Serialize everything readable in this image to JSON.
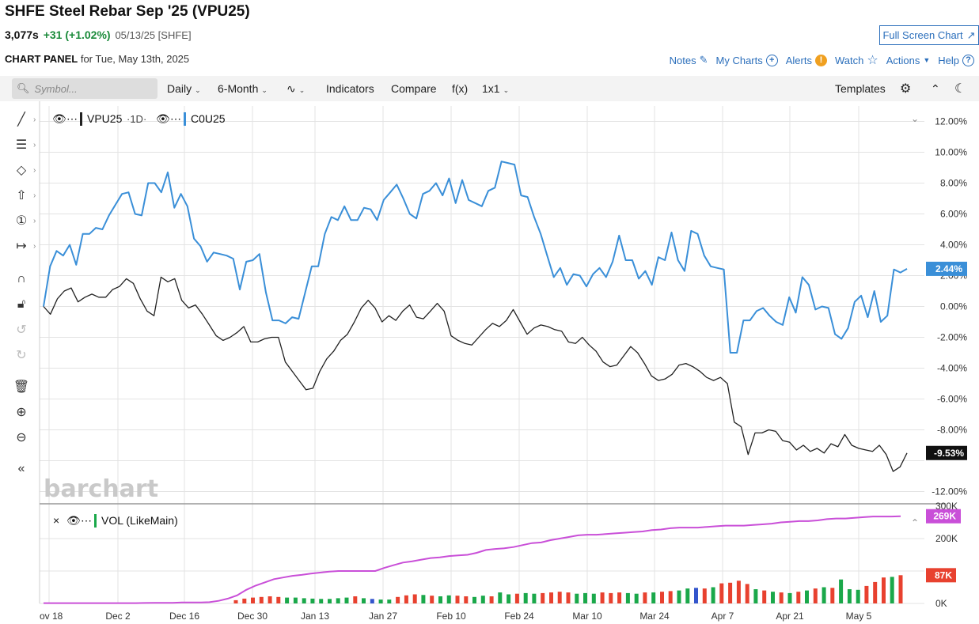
{
  "header": {
    "title": "SHFE Steel Rebar Sep '25 (VPU25)",
    "price": "3,077s",
    "change": "+31 (+1.02%)",
    "meta": "05/13/25 [SHFE]",
    "fullscreen_label": "Full Screen Chart"
  },
  "panel": {
    "label": "CHART PANEL",
    "date_text": "for Tue, May 13th, 2025",
    "links": {
      "notes": "Notes",
      "mycharts": "My Charts",
      "alerts": "Alerts",
      "watch": "Watch",
      "actions": "Actions",
      "help": "Help"
    }
  },
  "toolbar": {
    "search_placeholder": "Symbol...",
    "interval": "Daily",
    "range": "6-Month",
    "indicators": "Indicators",
    "compare": "Compare",
    "fx": "f(x)",
    "layout": "1x1",
    "templates": "Templates"
  },
  "watermark": "barchart",
  "icons": {
    "left_tools": [
      "line-tool-icon",
      "fib-tool-icon",
      "shapes-tool-icon",
      "arrow-tool-icon",
      "annotation-tool-icon",
      "measure-tool-icon",
      "magnet-icon",
      "unlock-icon",
      "undo-icon",
      "redo-icon",
      "trash-icon",
      "zoom-in-icon",
      "zoom-out-icon",
      "collapse-icon"
    ]
  },
  "colors": {
    "primary": "#222222",
    "compare": "#3a8fd8",
    "vol_line": "#c94fd8",
    "vol_up": "#1aa84a",
    "vol_down": "#e8412f",
    "vol_blue": "#3355cc",
    "link": "#2a6ebb"
  },
  "chart_data": [
    {
      "type": "line",
      "legend": [
        "VPU25",
        "1D",
        "C0U25"
      ],
      "ylabel": "",
      "yticks": [
        "12.00%",
        "10.00%",
        "8.00%",
        "6.00%",
        "4.00%",
        "2.00%",
        "0.00%",
        "-2.00%",
        "-4.00%",
        "-6.00%",
        "-8.00%",
        "-12.00%"
      ],
      "ylim": [
        -12.5,
        12.5
      ],
      "xticks": [
        "ov 18",
        "Dec 2",
        "Dec 16",
        "Dec 30",
        "Jan 13",
        "Jan 27",
        "Feb 10",
        "Feb 24",
        "Mar 10",
        "Mar 24",
        "Apr 7",
        "Apr 21",
        "May 5"
      ],
      "last_labels": {
        "VPU25": "-9.53%",
        "C0U25": "2.44%"
      },
      "series": [
        {
          "name": "VPU25",
          "values": [
            0.0,
            -0.5,
            0.5,
            1.0,
            1.2,
            0.3,
            0.6,
            0.8,
            0.6,
            0.6,
            1.1,
            1.3,
            1.8,
            1.5,
            0.5,
            -0.3,
            -0.6,
            1.9,
            1.6,
            1.8,
            0.4,
            -0.1,
            0.1,
            -0.5,
            -1.2,
            -1.9,
            -2.2,
            -2.0,
            -1.7,
            -1.3,
            -2.3,
            -2.3,
            -2.1,
            -2.0,
            -2.0,
            -3.6,
            -4.2,
            -4.8,
            -5.4,
            -5.3,
            -4.2,
            -3.4,
            -2.9,
            -2.2,
            -1.8,
            -1.0,
            -0.1,
            0.4,
            -0.1,
            -1.0,
            -0.6,
            -0.9,
            -0.3,
            0.1,
            -0.7,
            -0.8,
            -0.3,
            0.2,
            -0.3,
            -1.9,
            -2.2,
            -2.4,
            -2.5,
            -2.0,
            -1.5,
            -1.1,
            -1.3,
            -0.9,
            -0.2,
            -1.0,
            -1.8,
            -1.4,
            -1.2,
            -1.3,
            -1.5,
            -1.6,
            -2.3,
            -2.4,
            -2.0,
            -2.5,
            -2.9,
            -3.6,
            -3.9,
            -3.8,
            -3.2,
            -2.6,
            -3.0,
            -3.7,
            -4.5,
            -4.8,
            -4.7,
            -4.4,
            -3.8,
            -3.7,
            -3.9,
            -4.2,
            -4.6,
            -4.8,
            -4.6,
            -5.0,
            -7.5,
            -7.8,
            -9.6,
            -8.2,
            -8.2,
            -8.0,
            -8.1,
            -8.7,
            -8.8,
            -9.3,
            -9.0,
            -9.4,
            -9.2,
            -9.5,
            -8.9,
            -9.1,
            -8.3,
            -9.0,
            -9.2,
            -9.3,
            -9.4,
            -9.0,
            -9.6,
            -10.7,
            -10.4,
            -9.5
          ]
        },
        {
          "name": "C0U25",
          "values": [
            0.0,
            2.6,
            3.6,
            3.3,
            4.0,
            2.7,
            4.7,
            4.7,
            5.1,
            5.0,
            5.9,
            6.6,
            7.3,
            7.4,
            6.0,
            5.9,
            8.0,
            8.0,
            7.4,
            8.7,
            6.4,
            7.3,
            6.5,
            4.4,
            3.9,
            2.9,
            3.5,
            3.4,
            3.3,
            3.1,
            1.1,
            2.9,
            3.0,
            3.4,
            0.9,
            -0.9,
            -0.9,
            -1.1,
            -0.7,
            -0.8,
            0.9,
            2.6,
            2.6,
            4.7,
            5.8,
            5.6,
            6.5,
            5.6,
            5.6,
            6.4,
            6.3,
            5.6,
            6.9,
            7.4,
            7.9,
            7.0,
            6.0,
            5.7,
            7.3,
            7.5,
            8.0,
            7.2,
            8.3,
            6.7,
            8.2,
            6.9,
            6.7,
            6.5,
            7.5,
            7.7,
            9.4,
            9.3,
            9.2,
            7.2,
            7.1,
            5.8,
            4.7,
            3.3,
            1.9,
            2.5,
            1.4,
            2.1,
            2.0,
            1.3,
            2.1,
            2.5,
            1.9,
            2.9,
            4.6,
            3.0,
            3.0,
            1.8,
            2.3,
            1.4,
            3.2,
            3.0,
            4.8,
            3.0,
            2.3,
            4.9,
            4.7,
            3.3,
            2.6,
            2.5,
            2.4,
            -3.0,
            -3.0,
            -0.9,
            -0.9,
            -0.3,
            -0.1,
            -0.6,
            -1.0,
            -1.2,
            0.6,
            -0.4,
            1.9,
            1.4,
            -0.2,
            0.0,
            -0.1,
            -1.8,
            -2.1,
            -1.4,
            0.3,
            0.7,
            -0.7,
            1.0,
            -1.0,
            -0.6,
            2.4,
            2.2,
            2.44
          ]
        }
      ]
    },
    {
      "type": "bar",
      "legend": "VOL (LikeMain)",
      "yticks": [
        "300K",
        "200K",
        "100K",
        "0K"
      ],
      "ylim": [
        0,
        300
      ],
      "last_labels": {
        "line": "269K",
        "bar": "87K"
      },
      "cumulative_line_k": [
        1,
        1,
        1,
        1,
        1,
        1,
        1,
        1,
        1,
        1,
        1,
        1.5,
        2,
        2,
        2,
        3,
        3,
        3,
        4,
        8,
        15,
        25,
        42,
        55,
        65,
        75,
        80,
        85,
        88,
        92,
        95,
        98,
        100,
        100,
        100,
        100,
        100,
        110,
        118,
        126,
        130,
        135,
        140,
        142,
        146,
        148,
        150,
        156,
        165,
        168,
        170,
        174,
        180,
        186,
        188,
        195,
        200,
        205,
        210,
        212,
        212,
        214,
        216,
        218,
        220,
        222,
        226,
        228,
        232,
        234,
        234,
        234,
        236,
        238,
        240,
        240,
        240,
        242,
        244,
        246,
        250,
        252,
        254,
        254,
        256,
        260,
        262,
        262,
        264,
        266,
        268,
        268,
        268,
        269
      ],
      "bars": [
        {
          "v": 10,
          "c": "down"
        },
        {
          "v": 15,
          "c": "down"
        },
        {
          "v": 18,
          "c": "down"
        },
        {
          "v": 20,
          "c": "down"
        },
        {
          "v": 22,
          "c": "down"
        },
        {
          "v": 20,
          "c": "down"
        },
        {
          "v": 18,
          "c": "up"
        },
        {
          "v": 18,
          "c": "up"
        },
        {
          "v": 16,
          "c": "up"
        },
        {
          "v": 15,
          "c": "up"
        },
        {
          "v": 14,
          "c": "up"
        },
        {
          "v": 14,
          "c": "up"
        },
        {
          "v": 16,
          "c": "up"
        },
        {
          "v": 18,
          "c": "up"
        },
        {
          "v": 22,
          "c": "down"
        },
        {
          "v": 16,
          "c": "up"
        },
        {
          "v": 14,
          "c": "blue"
        },
        {
          "v": 12,
          "c": "up"
        },
        {
          "v": 12,
          "c": "up"
        },
        {
          "v": 20,
          "c": "down"
        },
        {
          "v": 25,
          "c": "down"
        },
        {
          "v": 28,
          "c": "down"
        },
        {
          "v": 26,
          "c": "up"
        },
        {
          "v": 24,
          "c": "down"
        },
        {
          "v": 22,
          "c": "up"
        },
        {
          "v": 25,
          "c": "up"
        },
        {
          "v": 24,
          "c": "down"
        },
        {
          "v": 22,
          "c": "down"
        },
        {
          "v": 20,
          "c": "up"
        },
        {
          "v": 24,
          "c": "up"
        },
        {
          "v": 22,
          "c": "down"
        },
        {
          "v": 34,
          "c": "up"
        },
        {
          "v": 28,
          "c": "up"
        },
        {
          "v": 30,
          "c": "down"
        },
        {
          "v": 32,
          "c": "up"
        },
        {
          "v": 30,
          "c": "up"
        },
        {
          "v": 32,
          "c": "down"
        },
        {
          "v": 34,
          "c": "down"
        },
        {
          "v": 36,
          "c": "down"
        },
        {
          "v": 34,
          "c": "down"
        },
        {
          "v": 30,
          "c": "up"
        },
        {
          "v": 32,
          "c": "up"
        },
        {
          "v": 30,
          "c": "up"
        },
        {
          "v": 34,
          "c": "down"
        },
        {
          "v": 32,
          "c": "down"
        },
        {
          "v": 34,
          "c": "down"
        },
        {
          "v": 32,
          "c": "up"
        },
        {
          "v": 30,
          "c": "up"
        },
        {
          "v": 34,
          "c": "down"
        },
        {
          "v": 34,
          "c": "up"
        },
        {
          "v": 36,
          "c": "down"
        },
        {
          "v": 38,
          "c": "down"
        },
        {
          "v": 40,
          "c": "up"
        },
        {
          "v": 46,
          "c": "up"
        },
        {
          "v": 48,
          "c": "blue"
        },
        {
          "v": 46,
          "c": "down"
        },
        {
          "v": 50,
          "c": "up"
        },
        {
          "v": 62,
          "c": "down"
        },
        {
          "v": 64,
          "c": "down"
        },
        {
          "v": 70,
          "c": "down"
        },
        {
          "v": 60,
          "c": "down"
        },
        {
          "v": 44,
          "c": "up"
        },
        {
          "v": 40,
          "c": "down"
        },
        {
          "v": 36,
          "c": "up"
        },
        {
          "v": 34,
          "c": "down"
        },
        {
          "v": 32,
          "c": "up"
        },
        {
          "v": 36,
          "c": "down"
        },
        {
          "v": 40,
          "c": "up"
        },
        {
          "v": 46,
          "c": "down"
        },
        {
          "v": 50,
          "c": "up"
        },
        {
          "v": 48,
          "c": "down"
        },
        {
          "v": 74,
          "c": "up"
        },
        {
          "v": 44,
          "c": "up"
        },
        {
          "v": 42,
          "c": "up"
        },
        {
          "v": 54,
          "c": "down"
        },
        {
          "v": 66,
          "c": "down"
        },
        {
          "v": 80,
          "c": "down"
        },
        {
          "v": 82,
          "c": "up"
        },
        {
          "v": 87,
          "c": "down"
        }
      ]
    }
  ]
}
